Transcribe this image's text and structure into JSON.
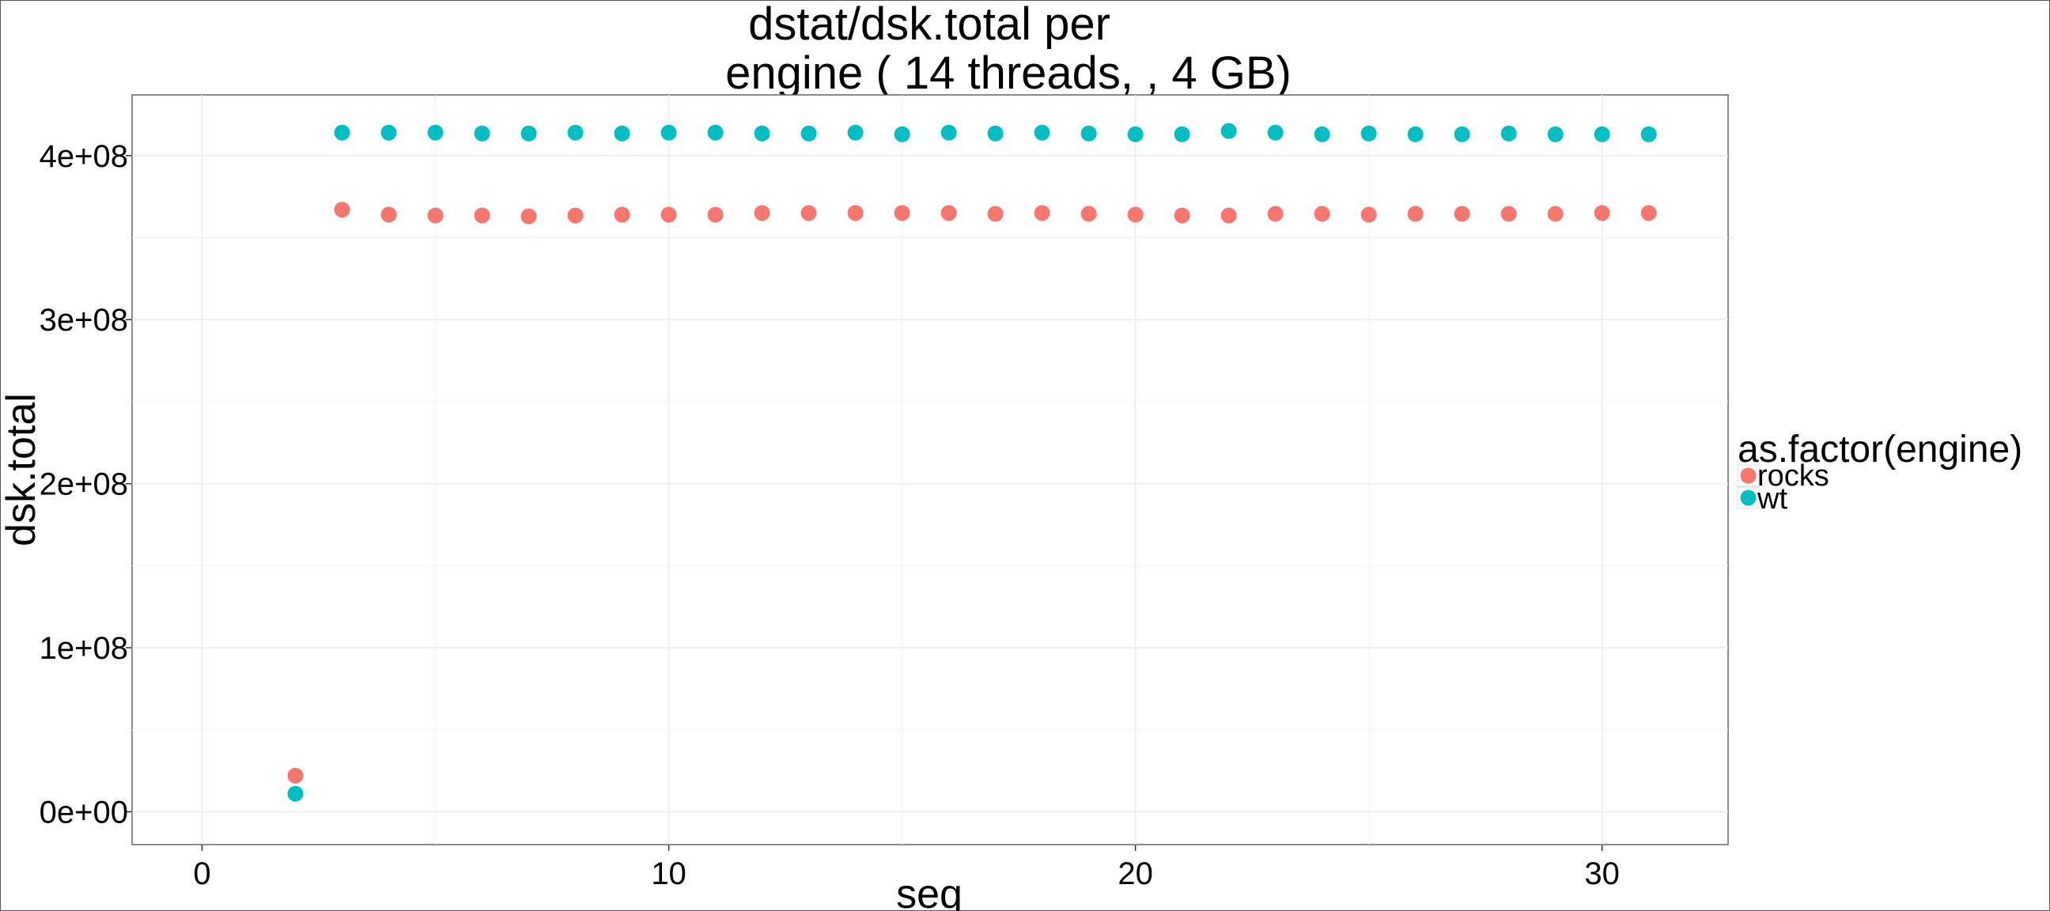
{
  "chart_data": {
    "type": "scatter",
    "title_lines": [
      "dstat/dsk.total per",
      "engine ( 14  threads, , 4 GB)"
    ],
    "xlabel": "seq",
    "ylabel": "dsk.total",
    "xlim": [
      -1.5,
      32.7
    ],
    "ylim": [
      -20000000,
      437000000
    ],
    "x_ticks": [
      0,
      10,
      20,
      30
    ],
    "x_tick_labels": [
      "0",
      "10",
      "20",
      "30"
    ],
    "y_ticks": [
      0,
      100000000,
      200000000,
      300000000,
      400000000
    ],
    "y_tick_labels": [
      "0e+00",
      "1e+08",
      "2e+08",
      "3e+08",
      "4e+08"
    ],
    "grid": true,
    "legend": {
      "title": "as.factor(engine)",
      "position": "right"
    },
    "series": [
      {
        "name": "rocks",
        "color": "#F8766D",
        "points": [
          [
            2,
            22000000
          ],
          [
            3,
            367000000
          ],
          [
            4,
            364000000
          ],
          [
            5,
            363500000
          ],
          [
            6,
            363500000
          ],
          [
            7,
            363000000
          ],
          [
            8,
            363500000
          ],
          [
            9,
            364000000
          ],
          [
            10,
            364000000
          ],
          [
            11,
            364000000
          ],
          [
            12,
            365000000
          ],
          [
            13,
            365000000
          ],
          [
            14,
            365000000
          ],
          [
            15,
            365000000
          ],
          [
            16,
            365000000
          ],
          [
            17,
            364500000
          ],
          [
            18,
            365000000
          ],
          [
            19,
            364500000
          ],
          [
            20,
            364000000
          ],
          [
            21,
            363500000
          ],
          [
            22,
            363500000
          ],
          [
            23,
            364500000
          ],
          [
            24,
            364500000
          ],
          [
            25,
            364000000
          ],
          [
            26,
            364500000
          ],
          [
            27,
            364500000
          ],
          [
            28,
            364500000
          ],
          [
            29,
            364500000
          ],
          [
            30,
            365000000
          ],
          [
            31,
            365000000
          ]
        ]
      },
      {
        "name": "wt",
        "color": "#00BFC4",
        "points": [
          [
            2,
            11000000
          ],
          [
            3,
            414000000
          ],
          [
            4,
            414000000
          ],
          [
            5,
            414000000
          ],
          [
            6,
            413500000
          ],
          [
            7,
            413500000
          ],
          [
            8,
            414000000
          ],
          [
            9,
            413500000
          ],
          [
            10,
            414000000
          ],
          [
            11,
            414000000
          ],
          [
            12,
            413500000
          ],
          [
            13,
            413500000
          ],
          [
            14,
            414000000
          ],
          [
            15,
            413000000
          ],
          [
            16,
            414000000
          ],
          [
            17,
            413500000
          ],
          [
            18,
            414000000
          ],
          [
            19,
            413500000
          ],
          [
            20,
            413000000
          ],
          [
            21,
            413000000
          ],
          [
            22,
            415000000
          ],
          [
            23,
            414000000
          ],
          [
            24,
            413000000
          ],
          [
            25,
            413500000
          ],
          [
            26,
            413000000
          ],
          [
            27,
            413000000
          ],
          [
            28,
            413500000
          ],
          [
            29,
            413000000
          ],
          [
            30,
            413000000
          ],
          [
            31,
            413000000
          ]
        ]
      }
    ]
  }
}
